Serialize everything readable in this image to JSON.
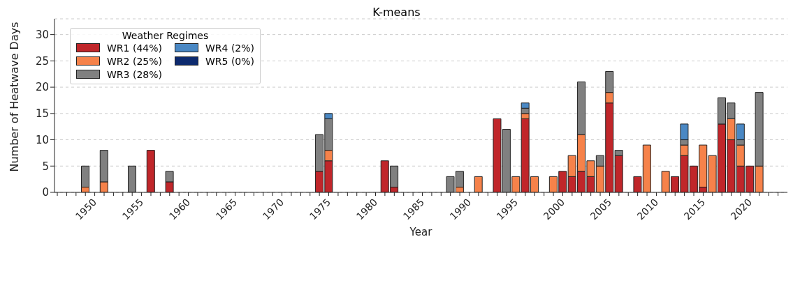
{
  "chart_data": {
    "type": "bar",
    "title": "K-means",
    "xlabel": "Year",
    "ylabel": "Number of Heatwave Days",
    "legend_title": "Weather Regimes",
    "stacked": true,
    "grid": "y",
    "legend": "top left",
    "x": [
      1950,
      1952,
      1955,
      1957,
      1959,
      1975,
      1976,
      1982,
      1983,
      1989,
      1990,
      1992,
      1994,
      1995,
      1996,
      1997,
      1998,
      2000,
      2001,
      2002,
      2003,
      2004,
      2005,
      2006,
      2007,
      2009,
      2010,
      2012,
      2013,
      2014,
      2015,
      2016,
      2017,
      2018,
      2019,
      2020,
      2021,
      2022
    ],
    "series": [
      {
        "name": "WR1 (44%)",
        "color": "#c0262a",
        "values": [
          0,
          0,
          0,
          8,
          2,
          4,
          6,
          6,
          1,
          0,
          0,
          0,
          14,
          0,
          0,
          14,
          0,
          0,
          4,
          3,
          4,
          3,
          0,
          17,
          7,
          3,
          0,
          0,
          3,
          7,
          5,
          1,
          0,
          13,
          10,
          5,
          5,
          0
        ]
      },
      {
        "name": "WR2 (25%)",
        "color": "#f6824a",
        "values": [
          1,
          2,
          0,
          0,
          0,
          0,
          2,
          0,
          0,
          0,
          1,
          3,
          0,
          0,
          3,
          1,
          3,
          3,
          0,
          4,
          7,
          3,
          5,
          2,
          0,
          0,
          9,
          4,
          0,
          2,
          0,
          8,
          7,
          0,
          4,
          4,
          0,
          5
        ]
      },
      {
        "name": "WR3 (28%)",
        "color": "#808080",
        "values": [
          4,
          6,
          5,
          0,
          2,
          7,
          6,
          0,
          4,
          3,
          3,
          0,
          0,
          12,
          0,
          1,
          0,
          0,
          0,
          0,
          10,
          0,
          2,
          4,
          1,
          0,
          0,
          0,
          0,
          1,
          0,
          0,
          0,
          5,
          3,
          1,
          0,
          14
        ]
      },
      {
        "name": "WR4 (2%)",
        "color": "#4a88c4",
        "values": [
          0,
          0,
          0,
          0,
          0,
          0,
          1,
          0,
          0,
          0,
          0,
          0,
          0,
          0,
          0,
          1,
          0,
          0,
          0,
          0,
          0,
          0,
          0,
          0,
          0,
          0,
          0,
          0,
          0,
          3,
          0,
          0,
          0,
          0,
          0,
          3,
          0,
          0
        ]
      },
      {
        "name": "WR5 (0%)",
        "color": "#0d2a6e",
        "values": [
          0,
          0,
          0,
          0,
          0,
          0,
          0,
          0,
          0,
          0,
          0,
          0,
          0,
          0,
          0,
          0,
          0,
          0,
          0,
          0,
          0,
          0,
          0,
          0,
          0,
          0,
          0,
          0,
          0,
          0,
          0,
          0,
          0,
          0,
          0,
          0,
          0,
          0
        ]
      }
    ],
    "xlim": [
      1946.7,
      2025
    ],
    "xticks": [
      {
        "value": 1947,
        "label": null
      },
      {
        "value": 1948,
        "label": null
      },
      {
        "value": 1949,
        "label": null
      },
      1950,
      {
        "value": 1951,
        "label": null
      },
      {
        "value": 1952,
        "label": null
      },
      {
        "value": 1953,
        "label": null
      },
      {
        "value": 1954,
        "label": null
      },
      1955,
      {
        "value": 1956,
        "label": null
      },
      {
        "value": 1957,
        "label": null
      },
      {
        "value": 1958,
        "label": null
      },
      {
        "value": 1959,
        "label": null
      },
      1960,
      {
        "value": 1961,
        "label": null
      },
      {
        "value": 1962,
        "label": null
      },
      {
        "value": 1963,
        "label": null
      },
      {
        "value": 1964,
        "label": null
      },
      1965,
      {
        "value": 1966,
        "label": null
      },
      {
        "value": 1967,
        "label": null
      },
      {
        "value": 1968,
        "label": null
      },
      {
        "value": 1969,
        "label": null
      },
      1970,
      {
        "value": 1971,
        "label": null
      },
      {
        "value": 1972,
        "label": null
      },
      {
        "value": 1973,
        "label": null
      },
      {
        "value": 1974,
        "label": null
      },
      1975,
      {
        "value": 1976,
        "label": null
      },
      {
        "value": 1977,
        "label": null
      },
      {
        "value": 1978,
        "label": null
      },
      {
        "value": 1979,
        "label": null
      },
      1980,
      {
        "value": 1981,
        "label": null
      },
      {
        "value": 1982,
        "label": null
      },
      {
        "value": 1983,
        "label": null
      },
      {
        "value": 1984,
        "label": null
      },
      1985,
      {
        "value": 1986,
        "label": null
      },
      {
        "value": 1987,
        "label": null
      },
      {
        "value": 1988,
        "label": null
      },
      {
        "value": 1989,
        "label": null
      },
      1990,
      {
        "value": 1991,
        "label": null
      },
      {
        "value": 1992,
        "label": null
      },
      {
        "value": 1993,
        "label": null
      },
      {
        "value": 1994,
        "label": null
      },
      1995,
      {
        "value": 1996,
        "label": null
      },
      {
        "value": 1997,
        "label": null
      },
      {
        "value": 1998,
        "label": null
      },
      {
        "value": 1999,
        "label": null
      },
      2000,
      {
        "value": 2001,
        "label": null
      },
      {
        "value": 2002,
        "label": null
      },
      {
        "value": 2003,
        "label": null
      },
      {
        "value": 2004,
        "label": null
      },
      2005,
      {
        "value": 2006,
        "label": null
      },
      {
        "value": 2007,
        "label": null
      },
      {
        "value": 2008,
        "label": null
      },
      {
        "value": 2009,
        "label": null
      },
      2010,
      {
        "value": 2011,
        "label": null
      },
      {
        "value": 2012,
        "label": null
      },
      {
        "value": 2013,
        "label": null
      },
      {
        "value": 2014,
        "label": null
      },
      2015,
      {
        "value": 2016,
        "label": null
      },
      {
        "value": 2017,
        "label": null
      },
      {
        "value": 2018,
        "label": null
      },
      {
        "value": 2019,
        "label": null
      },
      2020,
      {
        "value": 2021,
        "label": null
      },
      {
        "value": 2022,
        "label": null
      },
      {
        "value": 2023,
        "label": null
      },
      {
        "value": 2024,
        "label": null
      }
    ],
    "ylim": [
      0,
      33
    ],
    "yticks": [
      0,
      5,
      10,
      15,
      20,
      25,
      30
    ]
  }
}
